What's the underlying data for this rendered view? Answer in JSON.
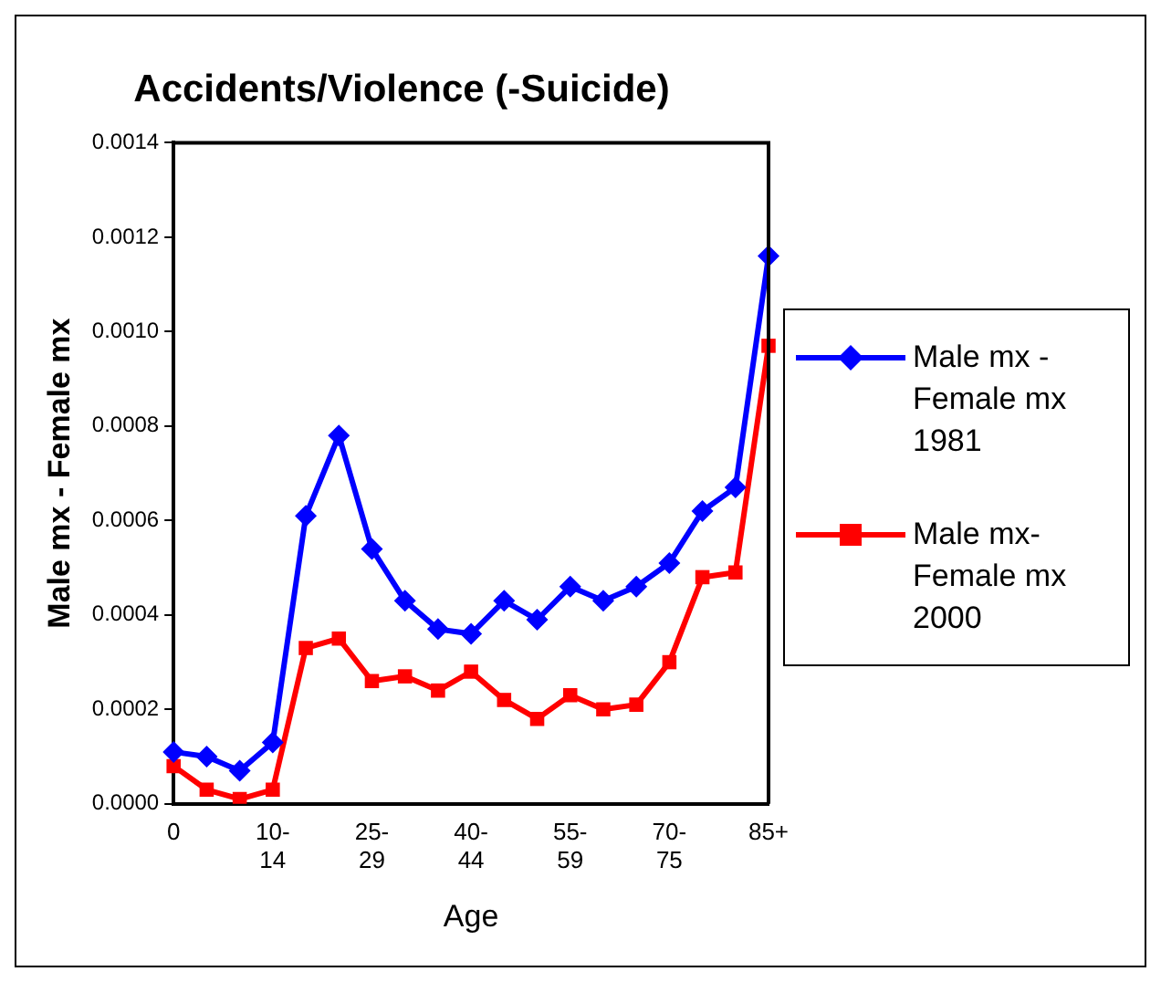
{
  "chart_data": {
    "type": "line",
    "title": "Accidents/Violence (-Suicide)",
    "xlabel": "Age",
    "ylabel": "Male mx - Female mx",
    "categories": [
      "0",
      null,
      null,
      "10-14",
      null,
      null,
      "25-29",
      null,
      null,
      "40-44",
      null,
      null,
      "55-59",
      null,
      null,
      "70-75",
      null,
      null,
      "85+"
    ],
    "series": [
      {
        "name": "Male mx - Female mx 1981",
        "color": "#0000ff",
        "marker": "diamond",
        "values": [
          0.00011,
          0.0001,
          7e-05,
          0.00013,
          0.00061,
          0.00078,
          0.00054,
          0.00043,
          0.00037,
          0.00036,
          0.00043,
          0.00039,
          0.00046,
          0.00043,
          0.00046,
          0.00051,
          0.00062,
          0.00067,
          0.00116
        ]
      },
      {
        "name": "Male mx- Female mx 2000",
        "color": "#ff0000",
        "marker": "square",
        "values": [
          8e-05,
          3e-05,
          1e-05,
          3e-05,
          0.00033,
          0.00035,
          0.00026,
          0.00027,
          0.00024,
          0.00028,
          0.00022,
          0.00018,
          0.00023,
          0.0002,
          0.00021,
          0.0003,
          0.00048,
          0.00049,
          0.00097
        ]
      }
    ],
    "ylim": [
      0,
      0.0014
    ],
    "yticks": [
      {
        "value": 0,
        "label": "0.0000"
      },
      {
        "value": 0.0002,
        "label": "0.0002"
      },
      {
        "value": 0.0004,
        "label": "0.0004"
      },
      {
        "value": 0.0006,
        "label": "0.0006"
      },
      {
        "value": 0.0008,
        "label": "0.0008"
      },
      {
        "value": 0.001,
        "label": "0.0010"
      },
      {
        "value": 0.0012,
        "label": "0.0012"
      },
      {
        "value": 0.0014,
        "label": "0.0014"
      }
    ],
    "grid": false,
    "legend": "right"
  }
}
